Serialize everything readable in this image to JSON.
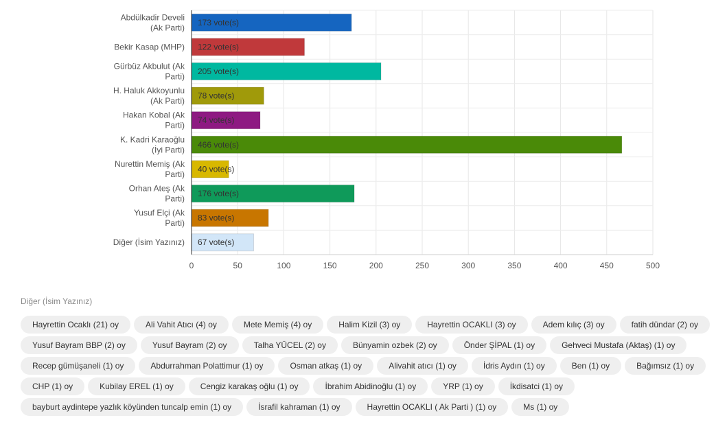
{
  "chart_data": {
    "type": "bar",
    "orientation": "horizontal",
    "categories": [
      [
        "Abdülkadir Develi",
        "(Ak Parti)"
      ],
      [
        "Bekir Kasap (MHP)"
      ],
      [
        "Gürbüz Akbulut (Ak",
        "Parti)"
      ],
      [
        "H. Haluk Akkoyunlu",
        "(Ak Parti)"
      ],
      [
        "Hakan Kobal (Ak",
        "Parti)"
      ],
      [
        "K. Kadri Karaoğlu",
        "(İyi Parti)"
      ],
      [
        "Nurettin Memiş (Ak",
        "Parti)"
      ],
      [
        "Orhan Ateş (Ak",
        "Parti)"
      ],
      [
        "Yusuf Elçi (Ak",
        "Parti)"
      ],
      [
        "Diğer (İsim Yazınız)"
      ]
    ],
    "values": [
      173,
      122,
      205,
      78,
      74,
      466,
      40,
      176,
      83,
      67
    ],
    "value_labels": [
      "173 vote(s)",
      "122 vote(s)",
      "205 vote(s)",
      "78 vote(s)",
      "74 vote(s)",
      "466 vote(s)",
      "40 vote(s)",
      "176 vote(s)",
      "83 vote(s)",
      "67 vote(s)"
    ],
    "colors": [
      "#1565c0",
      "#c0393b",
      "#00b8a0",
      "#a09a0a",
      "#8e1a82",
      "#4a8a08",
      "#d8b800",
      "#0f9a5a",
      "#c87600",
      "#d2e6f8"
    ],
    "xlim": [
      0,
      500
    ],
    "xticks": [
      0,
      50,
      100,
      150,
      200,
      250,
      300,
      350,
      400,
      450,
      500
    ],
    "grid": true
  },
  "other": {
    "title": "Diğer (İsim Yazınız)",
    "entries": [
      "Hayrettin Ocaklı (21) oy",
      "Ali Vahit Atıcı (4) oy",
      "Mete Memiş (4) oy",
      "Halim Kizil (3) oy",
      "Hayrettin OCAKLI (3) oy",
      "Adem kılıç (3) oy",
      "fatih dündar (2) oy",
      "Yusuf Bayram BBP (2) oy",
      "Yusuf Bayram (2) oy",
      "Talha YÜCEL (2) oy",
      "Bünyamin ozbek (2) oy",
      "Önder ŞİPAL (1) oy",
      "Gehveci Mustafa (Aktaş) (1) oy",
      "Recep gümüşaneli (1) oy",
      "Abdurrahman Polattimur (1) oy",
      "Osman atkaş (1) oy",
      "Alivahit atıcı (1) oy",
      "İdris Aydın (1) oy",
      "Ben (1) oy",
      "Bağımsız (1) oy",
      "CHP (1) oy",
      "Kubilay EREL (1) oy",
      "Cengiz karakaş oğlu (1) oy",
      "İbrahim Abidinoğlu (1) oy",
      "YRP (1) oy",
      "İkdisatci (1) oy",
      "bayburt aydintepe yazlık köyünden tuncalp emin (1) oy",
      "İsrafil kahraman (1) oy",
      "Hayrettin OCAKLI ( Ak Parti ) (1) oy",
      "Ms (1) oy"
    ]
  }
}
